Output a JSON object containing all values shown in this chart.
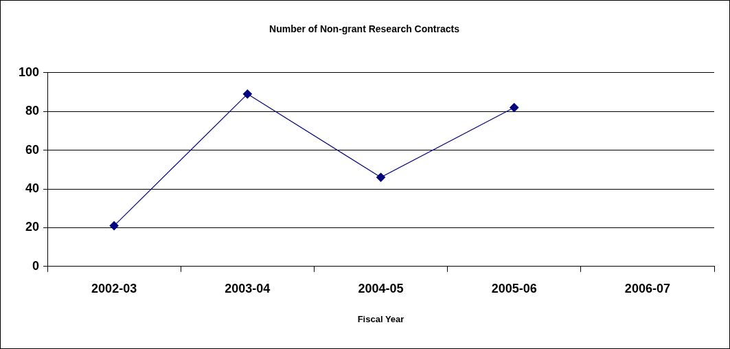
{
  "chart_data": {
    "type": "line",
    "title": "Number of Non-grant Research Contracts",
    "xlabel": "Fiscal Year",
    "categories": [
      "2002-03",
      "2003-04",
      "2004-05",
      "2005-06",
      "2006-07"
    ],
    "series": [
      {
        "color": "#000080",
        "values": [
          21,
          89,
          46,
          82,
          null
        ]
      }
    ],
    "ylim": [
      0,
      100
    ],
    "yticks": [
      0,
      20,
      40,
      60,
      80,
      100
    ],
    "grid": "y",
    "legend": false,
    "marker": "diamond",
    "line_style": "solid"
  }
}
